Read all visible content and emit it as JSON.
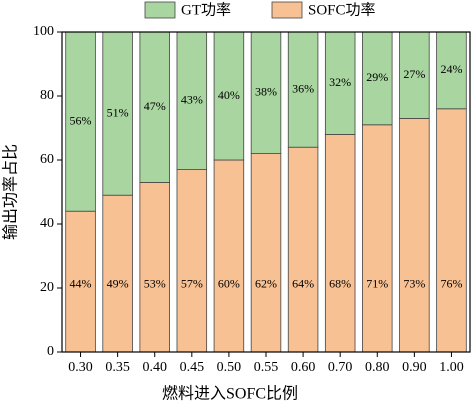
{
  "chart_data": {
    "type": "stacked-bar",
    "x_label": "燃料进入SOFC比例",
    "y_label": "输出功率占比",
    "categories": [
      "0.30",
      "0.35",
      "0.40",
      "0.45",
      "0.50",
      "0.55",
      "0.60",
      "0.70",
      "0.80",
      "0.90",
      "1.00"
    ],
    "series": [
      {
        "name": "SOFC功率",
        "color": "#f8c193",
        "values": [
          44,
          49,
          53,
          57,
          60,
          62,
          64,
          68,
          71,
          73,
          76
        ],
        "value_labels": [
          "44%",
          "49%",
          "53%",
          "57%",
          "60%",
          "62%",
          "64%",
          "68%",
          "71%",
          "73%",
          "76%"
        ]
      },
      {
        "name": "GT功率",
        "color": "#a8d5a0",
        "values": [
          56,
          51,
          47,
          43,
          40,
          38,
          36,
          32,
          29,
          27,
          24
        ],
        "value_labels": [
          "56%",
          "51%",
          "47%",
          "43%",
          "40%",
          "38%",
          "36%",
          "32%",
          "29%",
          "27%",
          "24%"
        ]
      }
    ],
    "ylim": [
      0,
      100
    ],
    "yticks": [
      0,
      20,
      40,
      60,
      80,
      100
    ],
    "legend": "top"
  }
}
